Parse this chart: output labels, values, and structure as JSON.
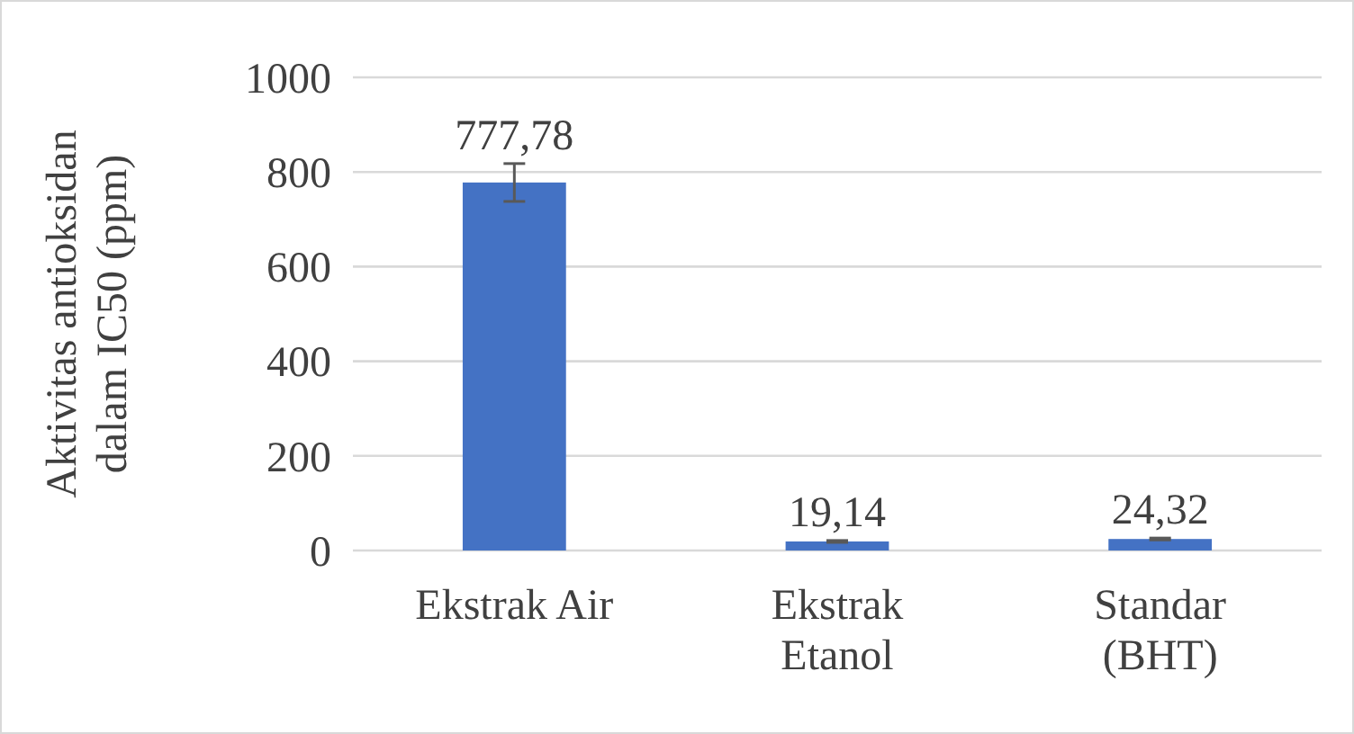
{
  "chart_data": {
    "type": "bar",
    "ylabel": "Aktivitas antioksidan dalam IC50 (ppm)",
    "categories": [
      "Ekstrak Air",
      "Ekstrak Etanol",
      "Standar (BHT)"
    ],
    "values": [
      777.78,
      19.14,
      24.32
    ],
    "color": "#4472c4",
    "errors": [
      40,
      2,
      2
    ],
    "value_labels": [
      "777,78",
      "19,14",
      "24,32"
    ],
    "ylim": [
      0,
      1000
    ],
    "yticks": [
      0,
      200,
      400,
      600,
      800,
      1000
    ],
    "grid": "y"
  }
}
